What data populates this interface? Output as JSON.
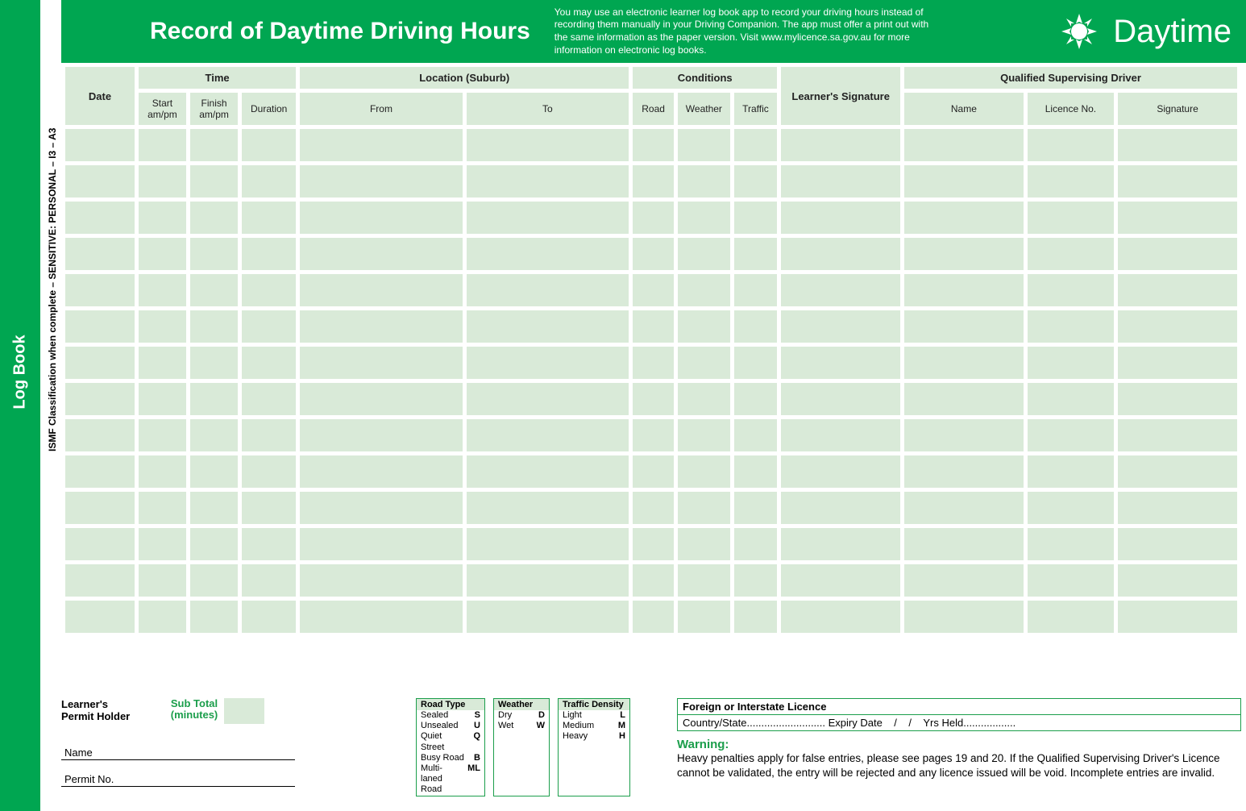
{
  "colors": {
    "brand_green": "#00a651",
    "cell_green": "#d9ead8",
    "text_green": "#1b9e4b"
  },
  "leftStrip": {
    "label": "Log Book"
  },
  "ismfText": "ISMF Classification when complete – SENSITIVE: PERSONAL – I3 – A3",
  "header": {
    "title": "Record of Daytime Driving Hours",
    "info": "You may use an electronic learner log book app to record your driving hours instead of recording them manually in your Driving Companion. The app must offer a print out with the same information as the paper version. Visit www.mylicence.sa.gov.au for more information on electronic log books.",
    "badge": "Daytime"
  },
  "table": {
    "columns": {
      "date": 64,
      "start": 44,
      "finish": 44,
      "duration": 50,
      "from": 150,
      "to": 150,
      "road": 38,
      "weather": 48,
      "traffic": 40,
      "learner_sig": 110,
      "qs_name": 110,
      "qs_licence": 80,
      "qs_sig": 110
    },
    "group_headers": {
      "date": "Date",
      "time": "Time",
      "location": "Location (Suburb)",
      "conditions": "Conditions",
      "learner_sig": "Learner's Signature",
      "qsd": "Qualified Supervising Driver"
    },
    "sub_headers": {
      "start": "Start am/pm",
      "finish": "Finish am/pm",
      "duration": "Duration",
      "from": "From",
      "to": "To",
      "road": "Road",
      "weather": "Weather",
      "traffic": "Traffic",
      "name": "Name",
      "licence": "Licence No.",
      "signature": "Signature"
    },
    "data_row_count": 14
  },
  "footer": {
    "permitHolder": {
      "title_line1": "Learner's",
      "title_line2": "Permit Holder",
      "subtotal_line1": "Sub Total",
      "subtotal_line2": "(minutes)",
      "name_label": "Name",
      "permit_label": "Permit No."
    },
    "legends": {
      "road": {
        "title": "Road Type",
        "items": [
          {
            "label": "Sealed",
            "code": "S"
          },
          {
            "label": "Unsealed",
            "code": "U"
          },
          {
            "label": "Quiet Street",
            "code": "Q"
          },
          {
            "label": "Busy Road",
            "code": "B"
          },
          {
            "label": "Multi-laned Road",
            "code": "ML"
          }
        ]
      },
      "weather": {
        "title": "Weather",
        "items": [
          {
            "label": "Dry",
            "code": "D"
          },
          {
            "label": "Wet",
            "code": "W"
          }
        ]
      },
      "traffic": {
        "title": "Traffic Density",
        "items": [
          {
            "label": "Light",
            "code": "L"
          },
          {
            "label": "Medium",
            "code": "M"
          },
          {
            "label": "Heavy",
            "code": "H"
          }
        ]
      }
    },
    "foreign": {
      "title": "Foreign or Interstate Licence",
      "content": "Country/State........................... Expiry Date    /    /    Yrs Held.................."
    },
    "warning": {
      "heading": "Warning:",
      "text": "Heavy penalties apply for false entries, please see pages 19 and 20. If the Qualified Supervising Driver's Licence cannot be validated, the entry will be rejected and any licence issued will be void. Incomplete entries are invalid."
    }
  }
}
